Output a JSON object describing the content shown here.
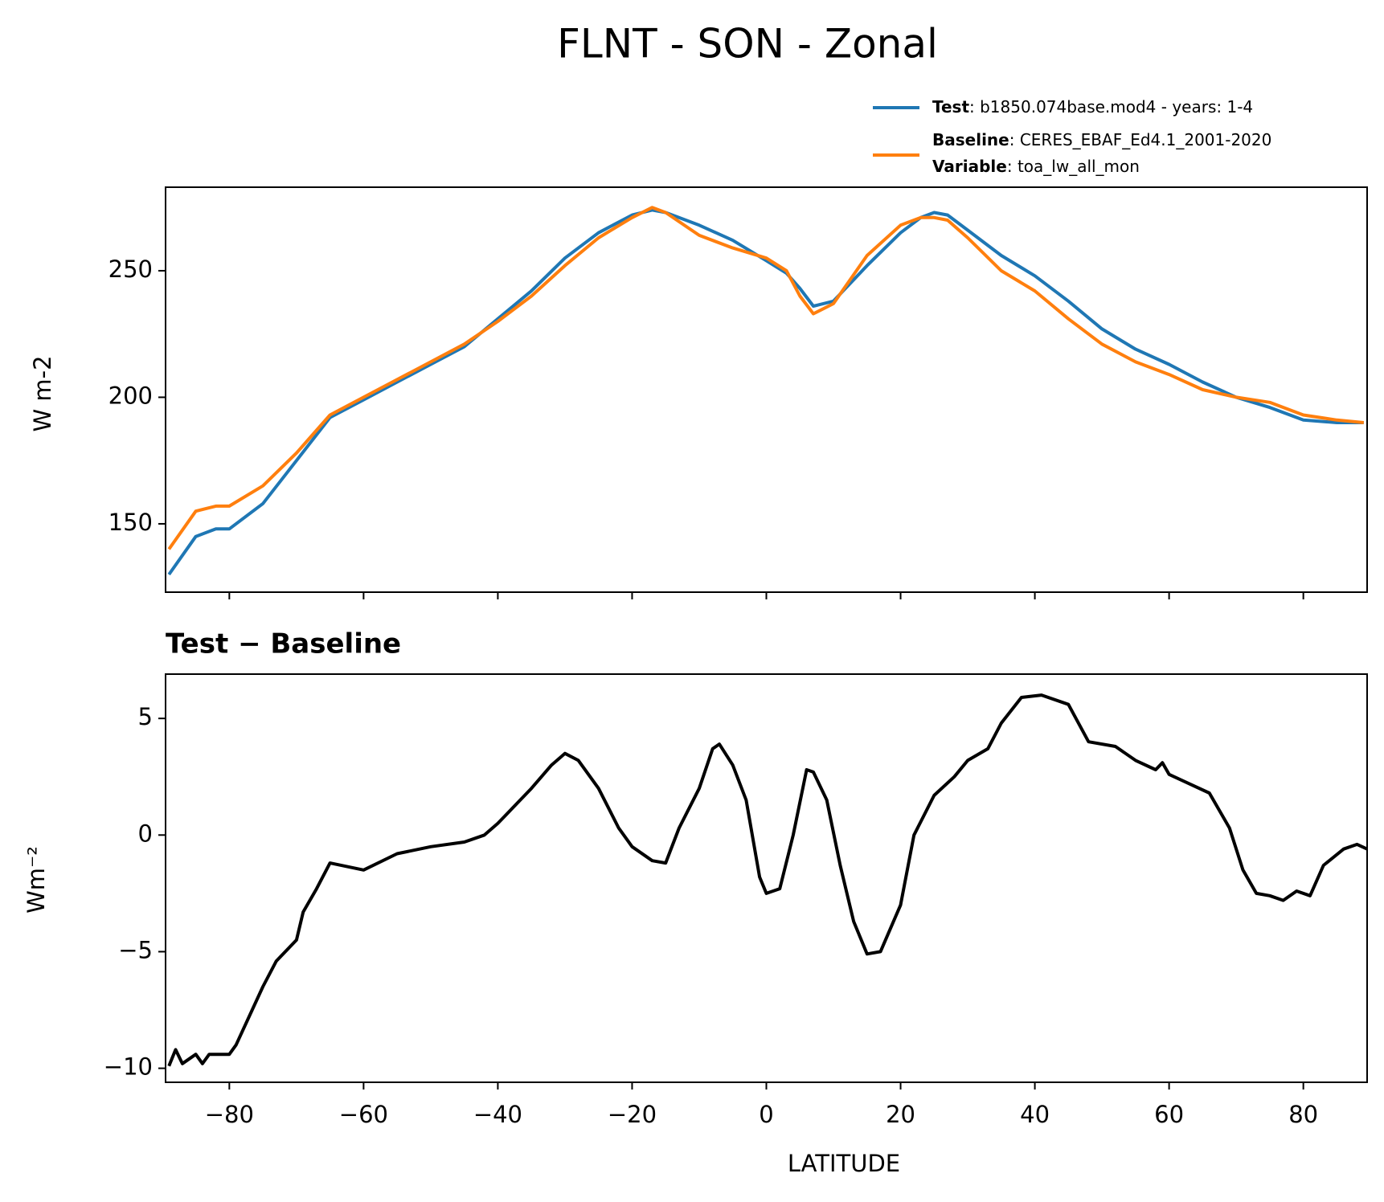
{
  "chart_data": [
    {
      "type": "line",
      "title": "FLNT - SON - Zonal",
      "ylabel": "W m-2",
      "x": [
        -89,
        -85,
        -82,
        -80,
        -75,
        -70,
        -65,
        -60,
        -55,
        -50,
        -45,
        -40,
        -35,
        -30,
        -25,
        -20,
        -17,
        -15,
        -10,
        -5,
        0,
        3,
        5,
        7,
        10,
        15,
        20,
        23,
        25,
        27,
        30,
        35,
        40,
        45,
        50,
        55,
        60,
        65,
        70,
        75,
        80,
        85,
        89
      ],
      "series": [
        {
          "name": "Test",
          "color": "#1f77b4",
          "values": [
            130,
            145,
            148,
            148,
            158,
            175,
            192,
            199,
            206,
            213,
            220,
            231,
            242,
            255,
            265,
            272,
            274,
            273,
            268,
            262,
            254,
            249,
            243,
            236,
            238,
            252,
            265,
            271,
            273,
            272,
            266,
            256,
            248,
            238,
            227,
            219,
            213,
            206,
            200,
            196,
            191,
            190,
            190
          ]
        },
        {
          "name": "Baseline",
          "color": "#ff7f0e",
          "values": [
            140,
            155,
            157,
            157,
            165,
            178,
            193,
            200,
            207,
            214,
            221,
            230,
            240,
            252,
            263,
            271,
            275,
            273,
            264,
            259,
            255,
            250,
            240,
            233,
            237,
            256,
            268,
            271,
            271,
            270,
            263,
            250,
            242,
            231,
            221,
            214,
            209,
            203,
            200,
            198,
            193,
            191,
            190
          ]
        }
      ],
      "legend_notes": [
        ": b1850.074base.mod4 - years: 1-4",
        ": CERES_EBAF_Ed4.1_2001-2020"
      ],
      "variable_label": "Variable",
      "variable": ": toa_lw_all_mon",
      "xlim": [
        -89.5,
        89.5
      ],
      "xticks": [
        -80,
        -60,
        -40,
        -20,
        0,
        20,
        40,
        60,
        80
      ],
      "ylim": [
        123,
        283
      ],
      "yticks": [
        150,
        200,
        250
      ]
    },
    {
      "type": "line",
      "title": "Test − Baseline",
      "xlabel": "LATITUDE",
      "ylabel": "Wm⁻²",
      "x": [
        -89,
        -88,
        -87,
        -85,
        -84,
        -83,
        -80,
        -79,
        -75,
        -73,
        -70,
        -69,
        -67,
        -65,
        -60,
        -55,
        -50,
        -45,
        -42,
        -40,
        -35,
        -32,
        -30,
        -28,
        -25,
        -22,
        -20,
        -17,
        -15,
        -13,
        -10,
        -8,
        -7,
        -5,
        -3,
        -1,
        0,
        2,
        4,
        6,
        7,
        9,
        11,
        13,
        15,
        17,
        20,
        22,
        25,
        28,
        30,
        33,
        35,
        38,
        41,
        45,
        48,
        52,
        55,
        58,
        59,
        60,
        63,
        66,
        69,
        71,
        73,
        75,
        77,
        79,
        81,
        83,
        86,
        88,
        89.5
      ],
      "series": [
        {
          "name": "Test − Baseline",
          "color": "#000000",
          "values": [
            -9.9,
            -9.2,
            -9.8,
            -9.4,
            -9.8,
            -9.4,
            -9.4,
            -9.0,
            -6.5,
            -5.4,
            -4.5,
            -3.3,
            -2.3,
            -1.2,
            -1.5,
            -0.8,
            -0.5,
            -0.3,
            0,
            0.5,
            2.0,
            3.0,
            3.5,
            3.2,
            2.0,
            0.3,
            -0.5,
            -1.1,
            -1.2,
            0.3,
            2.0,
            3.7,
            3.9,
            3.0,
            1.5,
            -1.8,
            -2.5,
            -2.3,
            0,
            2.8,
            2.7,
            1.5,
            -1.3,
            -3.7,
            -5.1,
            -5.0,
            -3.0,
            0,
            1.7,
            2.5,
            3.2,
            3.7,
            4.8,
            5.9,
            6.0,
            5.6,
            4.0,
            3.8,
            3.2,
            2.8,
            3.1,
            2.6,
            2.2,
            1.8,
            0.3,
            -1.5,
            -2.5,
            -2.6,
            -2.8,
            -2.4,
            -2.6,
            -1.3,
            -0.6,
            -0.4,
            -0.6
          ]
        }
      ],
      "xlim": [
        -89.5,
        89.5
      ],
      "xticks": [
        {
          "value": -80,
          "label": "−80"
        },
        {
          "value": -60,
          "label": "−60"
        },
        {
          "value": -40,
          "label": "−40"
        },
        {
          "value": -20,
          "label": "−20"
        },
        0,
        20,
        40,
        60,
        80
      ],
      "ylim": [
        -10.6,
        6.9
      ],
      "yticks": [
        {
          "value": -10,
          "label": "−10"
        },
        {
          "value": -5,
          "label": "−5"
        },
        0,
        5
      ]
    }
  ]
}
